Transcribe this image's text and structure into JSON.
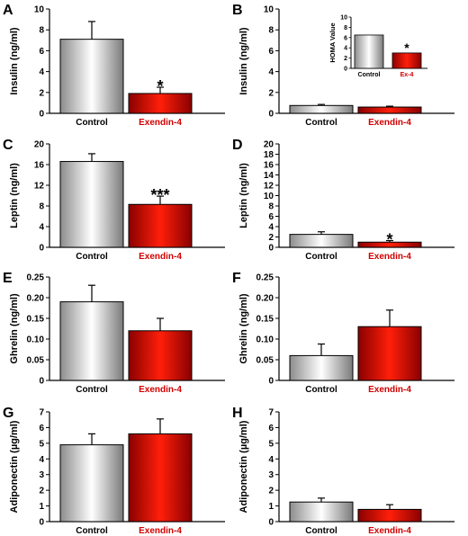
{
  "colors": {
    "control_bar": "#e6e6e6",
    "exendin_bar": "#e8180a",
    "exendin_label": "#d20000",
    "control_label": "#000000"
  },
  "chart_data": [
    {
      "panel": "A",
      "type": "bar",
      "categories": [
        "Control",
        "Exendin-4"
      ],
      "values": [
        7.1,
        1.9
      ],
      "errors": [
        1.7,
        0.6
      ],
      "significance": [
        "",
        "*"
      ],
      "ylabel": "Insulin (ng/ml)",
      "ylim": [
        0,
        10
      ],
      "yticks": [
        0,
        2,
        4,
        6,
        8,
        10
      ]
    },
    {
      "panel": "B",
      "type": "bar",
      "categories": [
        "Control",
        "Exendin-4"
      ],
      "values": [
        0.75,
        0.6
      ],
      "errors": [
        0.1,
        0.08
      ],
      "significance": [
        "",
        ""
      ],
      "ylabel": "Insulin (ng/ml)",
      "ylim": [
        0,
        10
      ],
      "yticks": [
        0,
        2,
        4,
        6,
        8,
        10
      ],
      "inset": {
        "type": "bar",
        "categories": [
          "Control",
          "Ex-4"
        ],
        "values": [
          6.5,
          3.0
        ],
        "errors": [
          0,
          0
        ],
        "significance": [
          "",
          "*"
        ],
        "ylabel": "HOMA Value",
        "ylim": [
          0,
          10
        ],
        "yticks": [
          0,
          2,
          4,
          6,
          8,
          10
        ]
      }
    },
    {
      "panel": "C",
      "type": "bar",
      "categories": [
        "Control",
        "Exendin-4"
      ],
      "values": [
        16.6,
        8.3
      ],
      "errors": [
        1.5,
        1.6
      ],
      "significance": [
        "",
        "***"
      ],
      "ylabel": "Leptin (ng/ml)",
      "ylim": [
        0,
        20
      ],
      "yticks": [
        0,
        4,
        8,
        12,
        16,
        20
      ]
    },
    {
      "panel": "D",
      "type": "bar",
      "categories": [
        "Control",
        "Exendin-4"
      ],
      "values": [
        2.5,
        1.0
      ],
      "errors": [
        0.5,
        0.3
      ],
      "significance": [
        "",
        "*"
      ],
      "ylabel": "Leptin (ng/ml)",
      "ylim": [
        0,
        20
      ],
      "yticks": [
        0,
        2,
        4,
        6,
        8,
        10,
        12,
        14,
        16,
        18,
        20
      ]
    },
    {
      "panel": "E",
      "type": "bar",
      "categories": [
        "Control",
        "Exendin-4"
      ],
      "values": [
        0.19,
        0.12
      ],
      "errors": [
        0.04,
        0.03
      ],
      "significance": [
        "",
        ""
      ],
      "ylabel": "Ghrelin (ng/ml)",
      "ylim": [
        0,
        0.25
      ],
      "yticks": [
        "0",
        "0.05",
        "0.10",
        "0.15",
        "0.20",
        "0.25"
      ]
    },
    {
      "panel": "F",
      "type": "bar",
      "categories": [
        "Control",
        "Exendin-4"
      ],
      "values": [
        0.06,
        0.13
      ],
      "errors": [
        0.028,
        0.04
      ],
      "significance": [
        "",
        ""
      ],
      "ylabel": "Ghrelin (ng/ml)",
      "ylim": [
        0,
        0.25
      ],
      "yticks": [
        "0",
        "0.05",
        "0.10",
        "0.15",
        "0.20",
        "0.25"
      ]
    },
    {
      "panel": "G",
      "type": "bar",
      "categories": [
        "Control",
        "Exendin-4"
      ],
      "values": [
        4.9,
        5.6
      ],
      "errors": [
        0.7,
        0.95
      ],
      "significance": [
        "",
        ""
      ],
      "ylabel": "Adiponectin (µg/ml)",
      "ylim": [
        0,
        7
      ],
      "yticks": [
        0,
        1,
        2,
        3,
        4,
        5,
        6,
        7
      ]
    },
    {
      "panel": "H",
      "type": "bar",
      "categories": [
        "Control",
        "Exendin-4"
      ],
      "values": [
        1.25,
        0.78
      ],
      "errors": [
        0.25,
        0.3
      ],
      "significance": [
        "",
        ""
      ],
      "ylabel": "Adiponectin (µg/ml)",
      "ylim": [
        0,
        7
      ],
      "yticks": [
        0,
        1,
        2,
        3,
        4,
        5,
        6,
        7
      ]
    }
  ]
}
